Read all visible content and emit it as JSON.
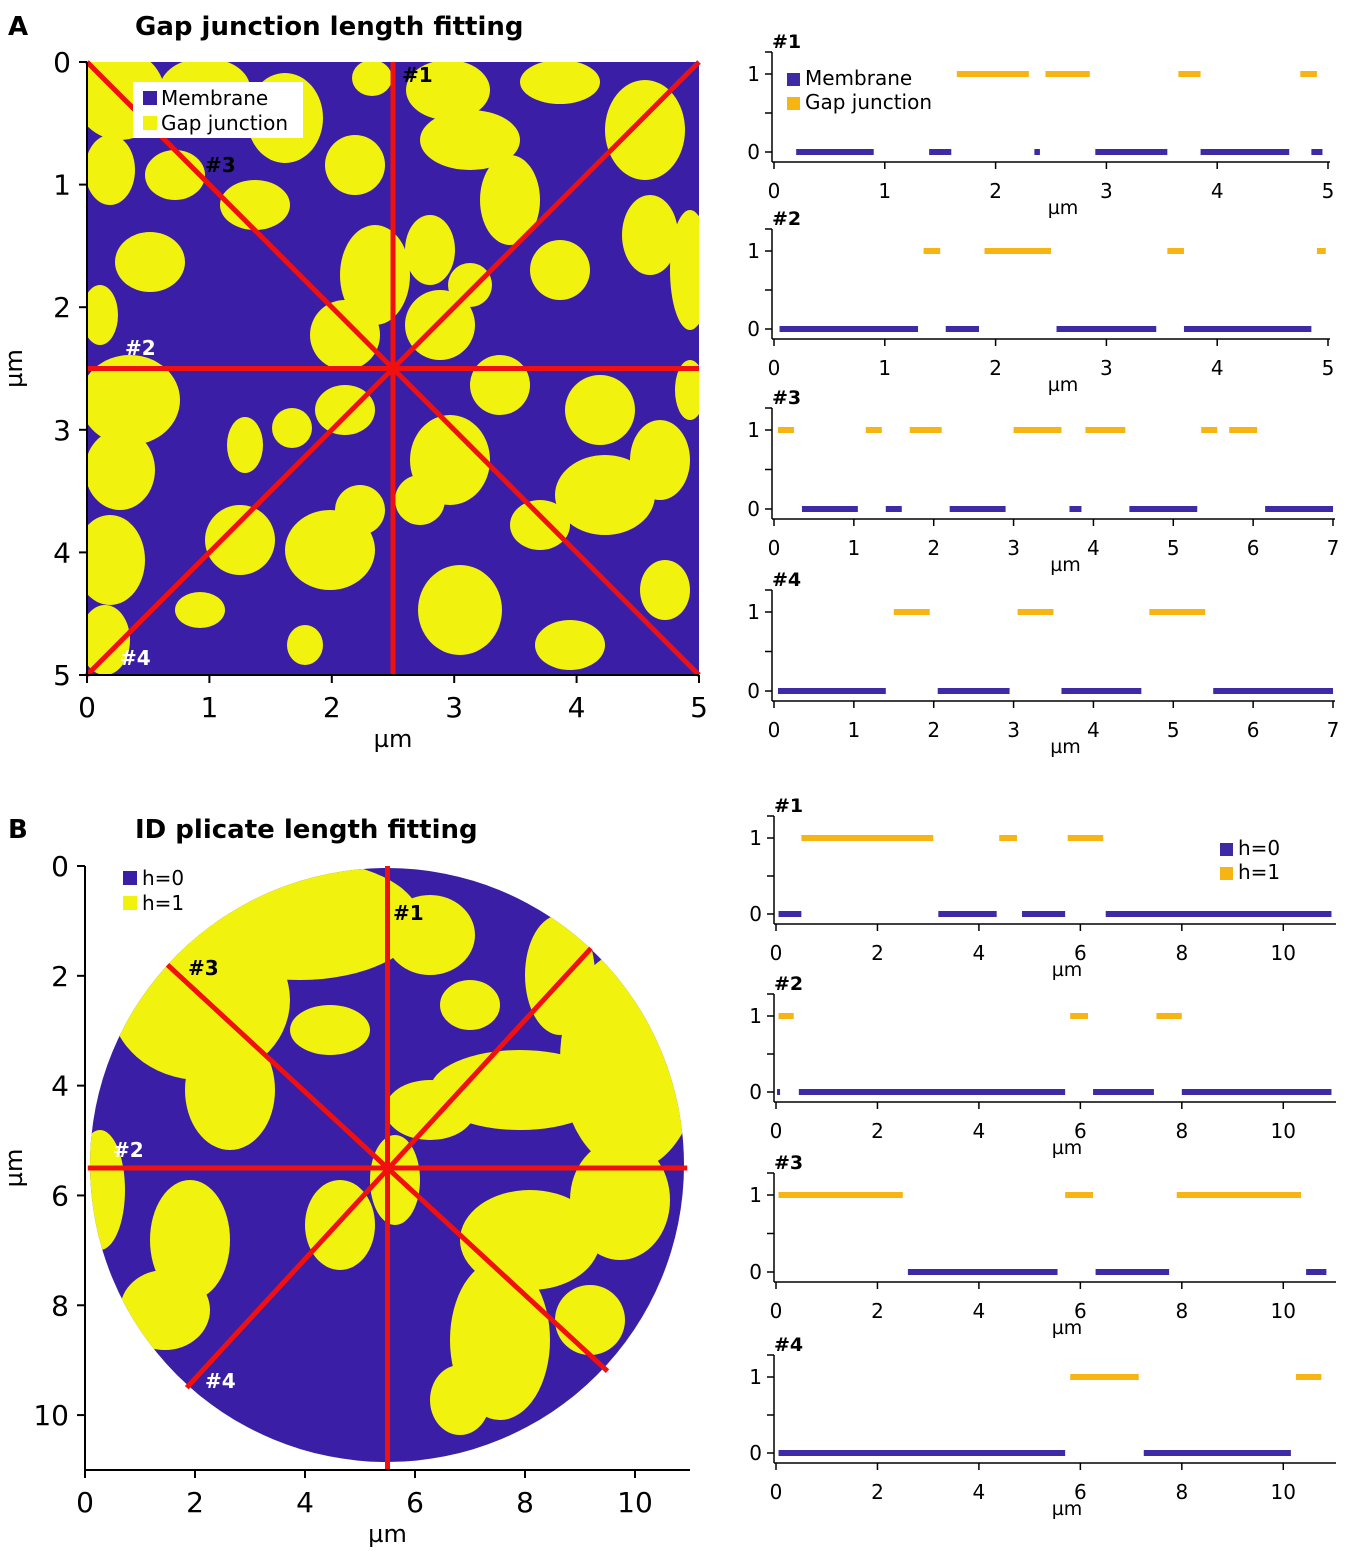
{
  "colors": {
    "membrane_map": "#3a1fa6",
    "gap_map": "#f2f20f",
    "membrane_bar": "#3d2aa4",
    "gap_bar": "#f7b514",
    "red": "#f01010"
  },
  "panel_a": {
    "letter": "A",
    "title": "Gap junction length fitting",
    "map": {
      "xlabel": "µm",
      "ylabel": "µm",
      "xlim": [
        0,
        5
      ],
      "ylim": [
        0,
        5
      ],
      "xticks": [
        "0",
        "1",
        "2",
        "3",
        "4",
        "5"
      ],
      "yticks": [
        "0",
        "1",
        "2",
        "3",
        "4",
        "5"
      ],
      "legend": [
        "Membrane",
        "Gap junction"
      ],
      "lines": [
        {
          "label": "#1",
          "from": [
            2.5,
            0
          ],
          "to": [
            2.5,
            5
          ]
        },
        {
          "label": "#2",
          "from": [
            0,
            2.5
          ],
          "to": [
            5,
            2.5
          ]
        },
        {
          "label": "#3",
          "from": [
            0,
            0
          ],
          "to": [
            5,
            5
          ]
        },
        {
          "label": "#4",
          "from": [
            0,
            5
          ],
          "to": [
            5,
            0
          ]
        }
      ]
    },
    "profiles": [
      {
        "label": "#1",
        "xlim": [
          0,
          5
        ],
        "xticks": [
          "0",
          "1",
          "2",
          "3",
          "4",
          "5"
        ],
        "yticks": [
          "0",
          "1"
        ],
        "xlabel": "µm",
        "legend": [
          "Membrane",
          "Gap junction"
        ],
        "gap": [
          [
            1.65,
            2.3
          ],
          [
            2.45,
            2.85
          ],
          [
            3.65,
            3.85
          ],
          [
            4.75,
            4.9
          ]
        ],
        "membrane": [
          [
            0.2,
            0.9
          ],
          [
            1.4,
            1.6
          ],
          [
            2.35,
            2.4
          ],
          [
            2.9,
            3.55
          ],
          [
            3.85,
            4.65
          ],
          [
            4.85,
            4.95
          ]
        ]
      },
      {
        "label": "#2",
        "xlim": [
          0,
          5
        ],
        "xticks": [
          "0",
          "1",
          "2",
          "3",
          "4",
          "5"
        ],
        "yticks": [
          "0",
          "1"
        ],
        "xlabel": "µm",
        "gap": [
          [
            1.35,
            1.5
          ],
          [
            1.9,
            2.5
          ],
          [
            3.55,
            3.7
          ],
          [
            4.9,
            4.98
          ]
        ],
        "membrane": [
          [
            0.05,
            1.3
          ],
          [
            1.55,
            1.85
          ],
          [
            2.55,
            3.45
          ],
          [
            3.7,
            4.85
          ]
        ]
      },
      {
        "label": "#3",
        "xlim": [
          0,
          7
        ],
        "xticks": [
          "0",
          "1",
          "2",
          "3",
          "4",
          "5",
          "6",
          "7"
        ],
        "yticks": [
          "0",
          "1"
        ],
        "xlabel": "µm",
        "gap": [
          [
            0.05,
            0.25
          ],
          [
            1.15,
            1.35
          ],
          [
            1.7,
            2.1
          ],
          [
            3.0,
            3.6
          ],
          [
            3.9,
            4.4
          ],
          [
            5.35,
            5.55
          ],
          [
            5.7,
            6.05
          ]
        ],
        "membrane": [
          [
            0.35,
            1.05
          ],
          [
            1.4,
            1.6
          ],
          [
            2.2,
            2.9
          ],
          [
            3.7,
            3.85
          ],
          [
            4.45,
            5.3
          ],
          [
            6.15,
            7.0
          ]
        ]
      },
      {
        "label": "#4",
        "xlim": [
          0,
          7
        ],
        "xticks": [
          "0",
          "1",
          "2",
          "3",
          "4",
          "5",
          "6",
          "7"
        ],
        "yticks": [
          "0",
          "1"
        ],
        "xlabel": "µm",
        "gap": [
          [
            1.5,
            1.95
          ],
          [
            3.05,
            3.5
          ],
          [
            4.7,
            5.4
          ]
        ],
        "membrane": [
          [
            0.05,
            1.4
          ],
          [
            2.05,
            2.95
          ],
          [
            3.6,
            4.6
          ],
          [
            5.5,
            7.0
          ]
        ]
      }
    ]
  },
  "panel_b": {
    "letter": "B",
    "title": "ID plicate length fitting",
    "map": {
      "xlabel": "µm",
      "ylabel": "µm",
      "xlim": [
        0,
        11
      ],
      "ylim": [
        0,
        11
      ],
      "xticks": [
        "0",
        "2",
        "4",
        "6",
        "8",
        "10"
      ],
      "yticks": [
        "0",
        "2",
        "4",
        "6",
        "8",
        "10"
      ],
      "legend": [
        "h=0",
        "h=1"
      ],
      "lines": [
        {
          "label": "#1",
          "from": [
            5.5,
            0
          ],
          "to": [
            5.5,
            11
          ]
        },
        {
          "label": "#2",
          "from": [
            0.05,
            5.5
          ],
          "to": [
            10.95,
            5.5
          ]
        },
        {
          "label": "#3",
          "from": [
            1.5,
            1.8
          ],
          "to": [
            9.5,
            9.2
          ]
        },
        {
          "label": "#4",
          "from": [
            1.85,
            9.5
          ],
          "to": [
            9.2,
            1.5
          ]
        }
      ]
    },
    "profiles": [
      {
        "label": "#1",
        "xlim": [
          0,
          11
        ],
        "xticks": [
          "0",
          "2",
          "4",
          "6",
          "8",
          "10"
        ],
        "yticks": [
          "0",
          "1"
        ],
        "xlabel": "µm",
        "legend": [
          "h=0",
          "h=1"
        ],
        "gap": [
          [
            0.5,
            3.1
          ],
          [
            4.4,
            4.75
          ],
          [
            5.75,
            6.45
          ]
        ],
        "membrane": [
          [
            0.05,
            0.5
          ],
          [
            3.2,
            4.35
          ],
          [
            4.85,
            5.7
          ],
          [
            6.5,
            10.95
          ]
        ]
      },
      {
        "label": "#2",
        "xlim": [
          0,
          11
        ],
        "xticks": [
          "0",
          "2",
          "4",
          "6",
          "8",
          "10"
        ],
        "yticks": [
          "0",
          "1"
        ],
        "xlabel": "µm",
        "gap": [
          [
            0.05,
            0.35
          ],
          [
            5.8,
            6.15
          ],
          [
            7.5,
            8.0
          ]
        ],
        "membrane": [
          [
            0.02,
            0.08
          ],
          [
            0.45,
            5.7
          ],
          [
            6.25,
            7.45
          ],
          [
            8.0,
            10.95
          ]
        ]
      },
      {
        "label": "#3",
        "xlim": [
          0,
          11
        ],
        "xticks": [
          "0",
          "2",
          "4",
          "6",
          "8",
          "10"
        ],
        "yticks": [
          "0",
          "1"
        ],
        "xlabel": "µm",
        "gap": [
          [
            0.05,
            2.5
          ],
          [
            5.7,
            6.25
          ],
          [
            7.9,
            10.35
          ]
        ],
        "membrane": [
          [
            2.6,
            5.55
          ],
          [
            6.3,
            7.75
          ],
          [
            10.45,
            10.85
          ]
        ]
      },
      {
        "label": "#4",
        "xlim": [
          0,
          11
        ],
        "xticks": [
          "0",
          "2",
          "4",
          "6",
          "8",
          "10"
        ],
        "yticks": [
          "0",
          "1"
        ],
        "xlabel": "µm",
        "gap": [
          [
            5.8,
            7.15
          ],
          [
            10.25,
            10.75
          ]
        ],
        "membrane": [
          [
            0.05,
            5.7
          ],
          [
            7.25,
            10.15
          ]
        ]
      }
    ]
  },
  "chart_data": [
    {
      "type": "heatmap",
      "title": "Gap junction length fitting",
      "xlabel": "µm",
      "ylabel": "µm",
      "xlim": [
        0,
        5
      ],
      "ylim": [
        0,
        5
      ],
      "legend": [
        "Membrane",
        "Gap junction"
      ]
    },
    {
      "type": "heatmap",
      "title": "ID plicate length fitting",
      "xlabel": "µm",
      "ylabel": "µm",
      "xlim": [
        0,
        11
      ],
      "ylim": [
        0,
        11
      ],
      "legend": [
        "h=0",
        "h=1"
      ]
    }
  ]
}
